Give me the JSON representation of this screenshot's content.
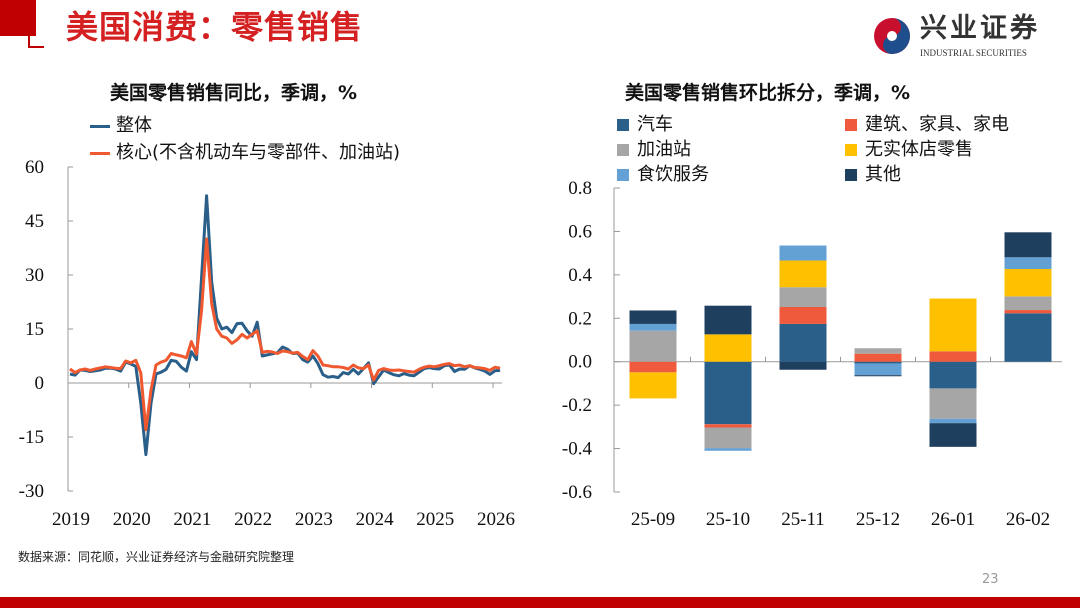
{
  "header": {
    "title": "美国消费：零售销售",
    "logo_cn": "兴业证券",
    "logo_en": "INDUSTRIAL SECURITIES"
  },
  "footer": {
    "source": "数据来源：同花顺，兴业证券经济与金融研究院整理",
    "page": "23"
  },
  "colors": {
    "brand": "#c00000",
    "title": "#d42020"
  },
  "chart_data": [
    {
      "type": "line",
      "title": "美国零售销售同比，季调，%",
      "xlabel": "",
      "ylabel": "",
      "ylim": [
        -30,
        60
      ],
      "yticks": [
        "60",
        "45",
        "30",
        "15",
        "0",
        "-15",
        "-30"
      ],
      "xticks": [
        "2019",
        "2020",
        "2021",
        "2022",
        "2023",
        "2024",
        "2025",
        "2026"
      ],
      "x_start": "2019-01",
      "x_end": "2026-02",
      "frequency": "monthly",
      "legend": "top-left",
      "series": [
        {
          "name": "整体",
          "color": "#2a5f8a",
          "values": [
            2.5,
            2.2,
            3.6,
            3.5,
            3.2,
            3.4,
            3.6,
            4.1,
            4.1,
            3.9,
            3.3,
            5.8,
            5.3,
            4.6,
            -5.6,
            -19.9,
            -5.6,
            2.5,
            3.0,
            3.8,
            6.3,
            6.0,
            4.4,
            3.3,
            8.7,
            6.5,
            29,
            52,
            28,
            18,
            15,
            15.5,
            14,
            16.5,
            16.6,
            14.5,
            13,
            16.9,
            7.5,
            7.8,
            8.1,
            8.4,
            10.0,
            9.4,
            8.2,
            8.3,
            6.5,
            5.8,
            7.5,
            5.4,
            2.3,
            1.6,
            1.8,
            1.5,
            2.9,
            2.5,
            3.8,
            2.5,
            4.0,
            5.6,
            -0.2,
            1.7,
            3.6,
            2.9,
            2.3,
            2.0,
            2.6,
            2.2,
            2.0,
            3.0,
            4.0,
            4.3,
            4.0,
            3.9,
            4.8,
            5.0,
            3.2,
            3.9,
            3.8,
            4.8,
            4.2,
            3.8,
            3.3,
            2.4,
            3.4,
            3.5
          ]
        },
        {
          "name": "核心(不含机动车与零部件、加油站)",
          "color": "#f0582f",
          "values": [
            3.9,
            2.9,
            3.6,
            3.9,
            3.5,
            3.9,
            4.2,
            4.5,
            4.3,
            4.1,
            4.0,
            6.1,
            5.6,
            6.3,
            2.8,
            -13.0,
            -2,
            5,
            5.8,
            6.3,
            8.2,
            7.8,
            7.5,
            7.0,
            11.5,
            8,
            20,
            40,
            22,
            15,
            13,
            12.5,
            11,
            12,
            13.5,
            12.5,
            13.5,
            14.5,
            8.5,
            8.8,
            8.6,
            8.2,
            8.9,
            8.7,
            8.3,
            8.5,
            7.4,
            6.5,
            9.0,
            7.5,
            5.0,
            4.8,
            4.5,
            4.5,
            4.3,
            3.9,
            5.0,
            4.2,
            4.0,
            5.0,
            0.8,
            3.5,
            4.0,
            3.6,
            3.5,
            3.6,
            3.4,
            3.2,
            3.0,
            3.8,
            4.4,
            4.7,
            4.5,
            4.8,
            5.2,
            5.4,
            4.8,
            5.0,
            4.5,
            4.8,
            4.3,
            4.2,
            4.0,
            3.5,
            4.4,
            4.1
          ]
        }
      ]
    },
    {
      "type": "bar",
      "stacked": true,
      "title": "美国零售销售环比拆分，季调，%",
      "xlabel": "",
      "ylabel": "",
      "ylim": [
        -0.6,
        0.8
      ],
      "yticks": [
        "0.8",
        "0.6",
        "0.4",
        "0.2",
        "0.0",
        "-0.2",
        "-0.4",
        "-0.6"
      ],
      "categories": [
        "25-09",
        "25-10",
        "25-11",
        "25-12",
        "26-01",
        "26-02"
      ],
      "legend": "top",
      "series": [
        {
          "name": "汽车",
          "color": "#2a5f8a",
          "values": [
            0.0,
            -0.288,
            0.174,
            -0.008,
            -0.123,
            0.223
          ]
        },
        {
          "name": "建筑、家具、家电",
          "color": "#f05a3c",
          "values": [
            -0.049,
            -0.015,
            0.078,
            0.037,
            0.048,
            0.015
          ]
        },
        {
          "name": "加油站",
          "color": "#a6a6a6",
          "values": [
            0.143,
            -0.095,
            0.091,
            0.025,
            -0.14,
            0.063
          ]
        },
        {
          "name": "无实体店零售",
          "color": "#ffc000",
          "values": [
            -0.12,
            0.126,
            0.123,
            0.0,
            0.243,
            0.126
          ]
        },
        {
          "name": "食饮服务",
          "color": "#63a0d4",
          "values": [
            0.031,
            -0.012,
            0.069,
            -0.054,
            -0.02,
            0.054
          ]
        },
        {
          "name": "其他",
          "color": "#1f3f5f",
          "values": [
            0.062,
            0.132,
            -0.037,
            -0.005,
            -0.109,
            0.115
          ]
        }
      ]
    }
  ]
}
